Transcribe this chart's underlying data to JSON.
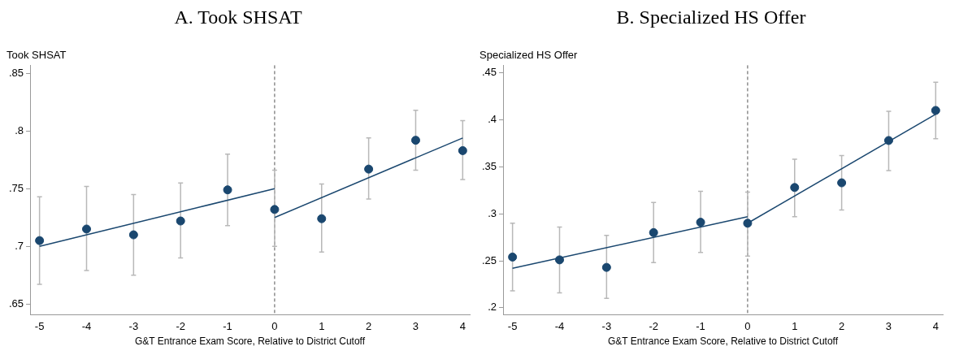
{
  "chart_data": [
    {
      "type": "scatter",
      "title": "A. Took SHSAT",
      "ylabel": "Took SHSAT",
      "xlabel": "G&T Entrance Exam Score, Relative to District Cutoff",
      "xlim": [
        -5.2,
        4.15
      ],
      "xticks": [
        -5,
        -4,
        -3,
        -2,
        -1,
        0,
        1,
        2,
        3,
        4
      ],
      "ylim": [
        0.641,
        0.857
      ],
      "yticks": [
        {
          "value": 0.65,
          "label": ".65"
        },
        {
          "value": 0.7,
          "label": ".7"
        },
        {
          "value": 0.75,
          "label": ".75"
        },
        {
          "value": 0.8,
          "label": ".8"
        },
        {
          "value": 0.85,
          "label": ".85"
        }
      ],
      "grid": false,
      "legend": false,
      "ref_lines": [
        {
          "axis": "x",
          "value": 0,
          "color": "#555555",
          "line_style": "dashed"
        }
      ],
      "series": [
        {
          "type": "scatter",
          "marker": "circle",
          "color": "#1a476f",
          "x": [
            -5,
            -4,
            -3,
            -2,
            -1,
            0,
            1,
            2,
            3,
            4
          ],
          "values": [
            0.705,
            0.715,
            0.71,
            0.722,
            0.749,
            0.732,
            0.724,
            0.767,
            0.792,
            0.783
          ],
          "errors": [
            [
              0.667,
              0.743
            ],
            [
              0.679,
              0.752
            ],
            [
              0.675,
              0.745
            ],
            [
              0.69,
              0.755
            ],
            [
              0.718,
              0.78
            ],
            [
              0.7,
              0.766
            ],
            [
              0.695,
              0.754
            ],
            [
              0.741,
              0.794
            ],
            [
              0.766,
              0.818
            ],
            [
              0.758,
              0.809
            ]
          ]
        },
        {
          "type": "line",
          "color": "#1a476f",
          "x": [
            -5,
            0
          ],
          "values": [
            0.7,
            0.75
          ]
        },
        {
          "type": "line",
          "color": "#1a476f",
          "x": [
            0,
            4
          ],
          "values": [
            0.725,
            0.794
          ]
        }
      ]
    },
    {
      "type": "scatter",
      "title": "B. Specialized HS Offer",
      "ylabel": "Specialized HS Offer",
      "xlabel": "G&T Entrance Exam Score, Relative to District Cutoff",
      "xlim": [
        -5.2,
        4.15
      ],
      "xticks": [
        -5,
        -4,
        -3,
        -2,
        -1,
        0,
        1,
        2,
        3,
        4
      ],
      "ylim": [
        0.193,
        0.458
      ],
      "yticks": [
        {
          "value": 0.2,
          "label": ".2"
        },
        {
          "value": 0.25,
          "label": ".25"
        },
        {
          "value": 0.3,
          "label": ".3"
        },
        {
          "value": 0.35,
          "label": ".35"
        },
        {
          "value": 0.4,
          "label": ".4"
        },
        {
          "value": 0.45,
          "label": ".45"
        }
      ],
      "grid": false,
      "legend": false,
      "ref_lines": [
        {
          "axis": "x",
          "value": 0,
          "color": "#555555",
          "line_style": "dashed"
        }
      ],
      "series": [
        {
          "type": "scatter",
          "marker": "circle",
          "color": "#1a476f",
          "x": [
            -5,
            -4,
            -3,
            -2,
            -1,
            0,
            1,
            2,
            3,
            4
          ],
          "values": [
            0.254,
            0.251,
            0.243,
            0.28,
            0.291,
            0.29,
            0.328,
            0.333,
            0.378,
            0.41
          ],
          "errors": [
            [
              0.218,
              0.29
            ],
            [
              0.216,
              0.286
            ],
            [
              0.21,
              0.277
            ],
            [
              0.248,
              0.312
            ],
            [
              0.259,
              0.324
            ],
            [
              0.255,
              0.323
            ],
            [
              0.297,
              0.358
            ],
            [
              0.304,
              0.362
            ],
            [
              0.346,
              0.409
            ],
            [
              0.38,
              0.44
            ]
          ]
        },
        {
          "type": "line",
          "color": "#1a476f",
          "x": [
            -5,
            0
          ],
          "values": [
            0.242,
            0.297
          ]
        },
        {
          "type": "line",
          "color": "#1a476f",
          "x": [
            0,
            4
          ],
          "values": [
            0.29,
            0.406
          ]
        }
      ]
    }
  ]
}
